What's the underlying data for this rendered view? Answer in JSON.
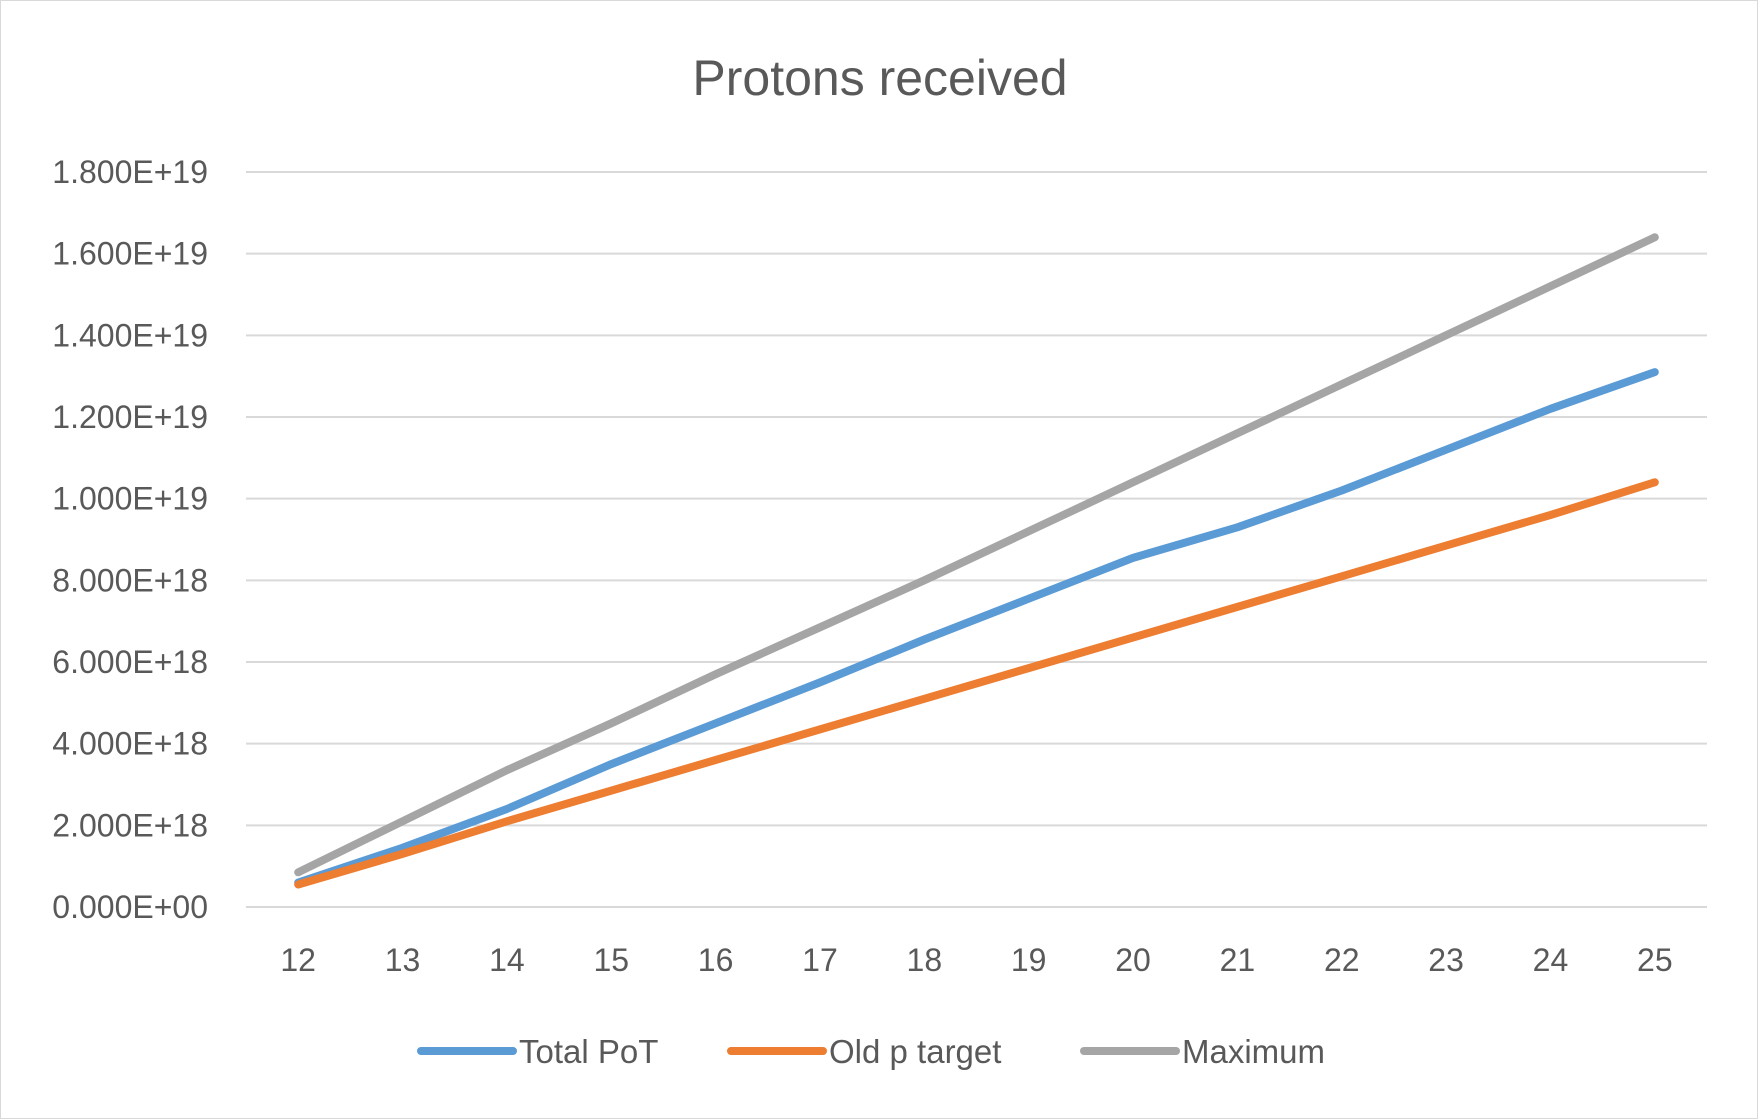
{
  "chart_data": {
    "type": "line",
    "title": "Protons received",
    "xlabel": "",
    "ylabel": "",
    "categories": [
      "12",
      "13",
      "14",
      "15",
      "16",
      "17",
      "18",
      "19",
      "20",
      "21",
      "22",
      "23",
      "24",
      "25"
    ],
    "y_ticks": [
      "0.000E+00",
      "2.000E+18",
      "4.000E+18",
      "6.000E+18",
      "8.000E+18",
      "1.000E+19",
      "1.200E+19",
      "1.400E+19",
      "1.600E+19",
      "1.800E+19"
    ],
    "ylim": [
      0,
      1.8e+19
    ],
    "grid": true,
    "legend_position": "bottom",
    "series": [
      {
        "name": "Total PoT",
        "color": "#5b9bd5",
        "values": [
          6e+17,
          1.45e+18,
          2.4e+18,
          3.5e+18,
          4.5e+18,
          5.5e+18,
          6.55e+18,
          7.55e+18,
          8.55e+18,
          9.3e+18,
          1.02e+19,
          1.12e+19,
          1.22e+19,
          1.31e+19
        ]
      },
      {
        "name": "Old p target",
        "color": "#ed7d31",
        "values": [
          5.5e+17,
          1.3e+18,
          2.1e+18,
          2.85e+18,
          3.6e+18,
          4.35e+18,
          5.1e+18,
          5.85e+18,
          6.6e+18,
          7.35e+18,
          8.1e+18,
          8.85e+18,
          9.6e+18,
          1.04e+19
        ]
      },
      {
        "name": "Maximum",
        "color": "#a5a5a5",
        "values": [
          8.5e+17,
          2.1e+18,
          3.35e+18,
          4.5e+18,
          5.7e+18,
          6.85e+18,
          8e+18,
          9.2e+18,
          1.04e+19,
          1.16e+19,
          1.28e+19,
          1.4e+19,
          1.52e+19,
          1.64e+19
        ]
      }
    ]
  }
}
